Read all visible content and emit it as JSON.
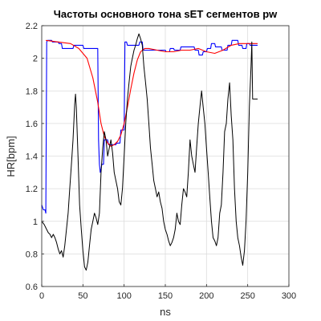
{
  "chart_data": {
    "type": "line",
    "title": "Частоты основного тона sET сегментов pw",
    "xlabel": "ns",
    "ylabel": "HR[bpm]",
    "xlim": [
      0,
      300
    ],
    "ylim": [
      0.6,
      2.2
    ],
    "xticks": [
      0,
      50,
      100,
      150,
      200,
      250,
      300
    ],
    "yticks": [
      0.6,
      0.8,
      1,
      1.2,
      1.4,
      1.6,
      1.8,
      2,
      2.2
    ],
    "ytick_labels": [
      "0.6",
      "0.8",
      "1",
      "1.2",
      "1.4",
      "1.6",
      "1.8",
      "2",
      "2.2"
    ],
    "grid": true,
    "legend": "none",
    "series": [
      {
        "color": "#0000ff",
        "x": [
          0,
          2,
          3,
          4,
          5,
          6,
          7,
          8,
          12,
          13,
          20,
          21,
          24,
          25,
          38,
          39,
          50,
          51,
          68,
          69,
          70,
          71,
          72,
          73,
          75,
          76,
          80,
          81,
          85,
          86,
          90,
          91,
          95,
          96,
          100,
          101,
          103,
          104,
          118,
          119,
          122,
          123,
          150,
          151,
          155,
          156,
          160,
          161,
          168,
          169,
          185,
          186,
          190,
          191,
          195,
          196,
          200,
          201,
          205,
          206,
          210,
          211,
          218,
          219,
          225,
          226,
          230,
          231,
          238,
          239,
          243,
          244,
          248,
          249,
          252,
          253,
          262
        ],
        "y": [
          1.1,
          1.07,
          1.07,
          1.07,
          1.05,
          2.1,
          2.11,
          2.11,
          2.11,
          2.1,
          2.1,
          2.09,
          2.09,
          2.06,
          2.06,
          2.08,
          2.08,
          2.06,
          2.06,
          1.5,
          1.35,
          1.3,
          1.32,
          1.35,
          1.35,
          1.5,
          1.5,
          1.47,
          1.47,
          1.47,
          1.47,
          1.48,
          1.48,
          1.56,
          1.56,
          2.1,
          2.1,
          2.08,
          2.08,
          2.1,
          2.1,
          2.05,
          2.05,
          2.04,
          2.04,
          2.06,
          2.06,
          2.05,
          2.05,
          2.07,
          2.07,
          2.05,
          2.05,
          2.02,
          2.02,
          2.04,
          2.04,
          2.06,
          2.06,
          2.09,
          2.09,
          2.07,
          2.07,
          2.05,
          2.05,
          2.08,
          2.08,
          2.11,
          2.11,
          2.08,
          2.08,
          2.06,
          2.06,
          2.09,
          2.09,
          2.08,
          2.08
        ]
      },
      {
        "color": "#ff0000",
        "x": [
          5,
          20,
          35,
          45,
          55,
          62,
          68,
          72,
          76,
          80,
          84,
          88,
          92,
          96,
          100,
          104,
          108,
          112,
          116,
          120,
          125,
          130,
          140,
          150,
          160,
          170,
          180,
          190,
          200,
          210,
          220,
          230,
          240,
          250,
          262
        ],
        "y": [
          2.11,
          2.1,
          2.09,
          2.06,
          2.0,
          1.88,
          1.73,
          1.6,
          1.52,
          1.48,
          1.46,
          1.47,
          1.49,
          1.53,
          1.6,
          1.7,
          1.81,
          1.91,
          1.99,
          2.04,
          2.06,
          2.06,
          2.05,
          2.04,
          2.04,
          2.05,
          2.05,
          2.06,
          2.04,
          2.03,
          2.05,
          2.08,
          2.09,
          2.09,
          2.09
        ]
      },
      {
        "color": "#000000",
        "x": [
          0,
          3,
          5,
          8,
          10,
          12,
          14,
          16,
          18,
          20,
          22,
          24,
          26,
          28,
          30,
          32,
          34,
          36,
          38,
          40,
          41,
          42,
          44,
          46,
          48,
          50,
          52,
          54,
          56,
          58,
          60,
          62,
          64,
          66,
          68,
          70,
          72,
          74,
          76,
          78,
          80,
          82,
          84,
          86,
          88,
          90,
          92,
          94,
          96,
          98,
          100,
          102,
          104,
          106,
          108,
          110,
          112,
          114,
          116,
          118,
          120,
          121,
          122,
          124,
          126,
          128,
          130,
          132,
          134,
          136,
          138,
          140,
          142,
          144,
          146,
          148,
          150,
          152,
          154,
          156,
          158,
          160,
          162,
          164,
          166,
          168,
          170,
          172,
          174,
          176,
          178,
          180,
          182,
          184,
          186,
          188,
          190,
          192,
          194,
          196,
          198,
          200,
          202,
          204,
          206,
          208,
          210,
          212,
          214,
          216,
          218,
          220,
          222,
          224,
          226,
          228,
          230,
          232,
          234,
          236,
          238,
          240,
          242,
          244,
          246,
          248,
          250,
          252,
          254,
          255,
          256,
          258,
          260,
          262
        ],
        "y": [
          1.0,
          0.98,
          0.96,
          0.93,
          0.92,
          0.9,
          0.92,
          0.9,
          0.87,
          0.83,
          0.8,
          0.82,
          0.78,
          0.85,
          0.95,
          1.05,
          1.2,
          1.35,
          1.5,
          1.72,
          1.78,
          1.7,
          1.4,
          1.1,
          0.95,
          0.82,
          0.72,
          0.7,
          0.75,
          0.85,
          0.95,
          1.0,
          1.05,
          1.02,
          0.98,
          1.05,
          1.3,
          1.45,
          1.55,
          1.5,
          1.4,
          1.45,
          1.5,
          1.42,
          1.3,
          1.25,
          1.2,
          1.12,
          1.1,
          1.2,
          1.4,
          1.6,
          1.75,
          1.85,
          1.95,
          2.0,
          2.05,
          2.08,
          2.12,
          2.15,
          2.12,
          2.1,
          2.08,
          1.95,
          1.85,
          1.75,
          1.6,
          1.45,
          1.35,
          1.25,
          1.2,
          1.15,
          1.18,
          1.12,
          1.08,
          1.0,
          0.95,
          0.92,
          0.88,
          0.85,
          0.87,
          0.9,
          0.95,
          1.05,
          1.0,
          0.98,
          1.1,
          1.2,
          1.18,
          1.15,
          1.3,
          1.5,
          1.4,
          1.35,
          1.3,
          1.45,
          1.6,
          1.7,
          1.8,
          1.7,
          1.6,
          1.45,
          1.3,
          1.15,
          1.0,
          0.9,
          0.88,
          0.85,
          0.9,
          1.05,
          1.1,
          1.3,
          1.55,
          1.6,
          1.75,
          1.85,
          1.65,
          1.5,
          1.2,
          1.0,
          0.9,
          0.85,
          0.78,
          0.73,
          0.82,
          1.0,
          1.3,
          1.7,
          1.95,
          2.1,
          1.75,
          1.75,
          1.75,
          1.75
        ]
      }
    ]
  }
}
